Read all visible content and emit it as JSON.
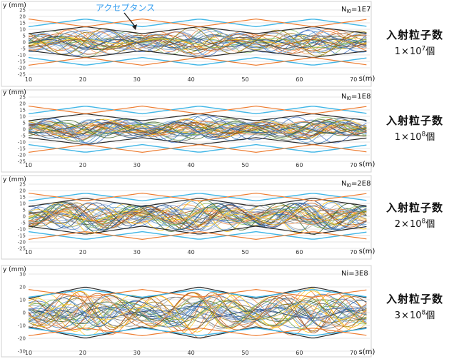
{
  "annotation": {
    "text": "アクセプタンス",
    "color": "#3aa0f0"
  },
  "chart_data": [
    {
      "type": "line",
      "ylabel": "y (mm)",
      "xlabel": "s(m)",
      "inset_label": "N_I0=1E7",
      "inset_main": "N",
      "inset_sub": "I0",
      "inset_rest": "=1E7",
      "xlim": [
        10,
        73
      ],
      "ylim": [
        -25,
        25
      ],
      "xticks": [
        10,
        20,
        30,
        40,
        50,
        60,
        70
      ],
      "yticks": [
        25,
        20,
        15,
        10,
        5,
        0,
        -5,
        -10,
        -15,
        -20,
        -25
      ],
      "acceptance_peak": 18,
      "acceptance_valley": 12,
      "beam_max": 12,
      "period": 10.5,
      "phase": 0,
      "n_traj": 30,
      "side_label_line1": "入射粒子数",
      "side_label_coef": "1",
      "side_label_exp": "7",
      "side_label_suffix": "個",
      "grid": true
    },
    {
      "type": "line",
      "ylabel": "y (mm)",
      "xlabel": "s(m)",
      "inset_label": "N_I0=1E8",
      "inset_main": "N",
      "inset_sub": "I0",
      "inset_rest": "=1E8",
      "xlim": [
        10,
        73
      ],
      "ylim": [
        -25,
        25
      ],
      "xticks": [
        10,
        20,
        30,
        40,
        50,
        60,
        70
      ],
      "yticks": [
        25,
        20,
        15,
        10,
        5,
        0,
        -5,
        -10,
        -15,
        -20,
        -25
      ],
      "acceptance_peak": 18,
      "acceptance_valley": 12,
      "beam_max": 12,
      "period": 10.5,
      "phase": 0,
      "n_traj": 34,
      "side_label_line1": "入射粒子数",
      "side_label_coef": "1",
      "side_label_exp": "8",
      "side_label_suffix": "個",
      "grid": true
    },
    {
      "type": "line",
      "ylabel": "y (mm)",
      "xlabel": "s(m)",
      "inset_label": "N_I0=2E8",
      "inset_main": "N",
      "inset_sub": "I0",
      "inset_rest": "=2E8",
      "xlim": [
        10,
        73
      ],
      "ylim": [
        -25,
        25
      ],
      "xticks": [
        10,
        20,
        30,
        40,
        50,
        60,
        70
      ],
      "yticks": [
        25,
        20,
        15,
        10,
        5,
        0,
        -5,
        -10,
        -15,
        -20,
        -25
      ],
      "acceptance_peak": 18,
      "acceptance_valley": 12,
      "beam_max": 14,
      "period": 10.5,
      "phase": 0,
      "n_traj": 36,
      "side_label_line1": "入射粒子数",
      "side_label_coef": "2",
      "side_label_exp": "8",
      "side_label_suffix": "個",
      "grid": true
    },
    {
      "type": "line",
      "ylabel": "y (mm)",
      "xlabel": "s(m)",
      "inset_label": "Ni=3E8",
      "inset_main": "Ni=3E8",
      "inset_sub": "",
      "inset_rest": "",
      "xlim": [
        10,
        73
      ],
      "ylim": [
        -30,
        30
      ],
      "xticks": [
        10,
        20,
        30,
        40,
        50,
        60,
        70
      ],
      "yticks": [
        30,
        20,
        10,
        0,
        -10,
        -20,
        -30
      ],
      "acceptance_peak": 18,
      "acceptance_valley": 12,
      "beam_max": 20,
      "period": 10.5,
      "phase": 0,
      "n_traj": 36,
      "side_label_line1": "入射粒子数",
      "side_label_coef": "3",
      "side_label_exp": "8",
      "side_label_suffix": "個",
      "grid": true
    }
  ]
}
